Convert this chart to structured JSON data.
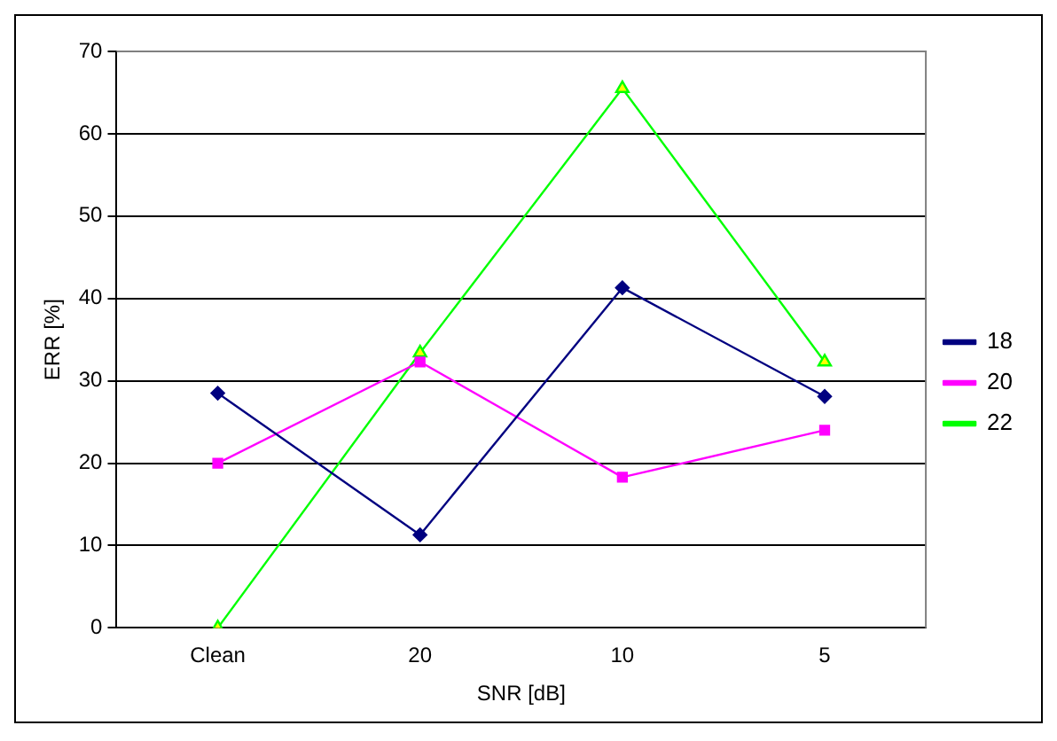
{
  "chart_data": {
    "type": "line",
    "xlabel": "SNR [dB]",
    "ylabel": "ERR [%]",
    "categories": [
      "Clean",
      "20",
      "10",
      "5"
    ],
    "series": [
      {
        "name": "18",
        "color": "#000080",
        "marker": "diamond",
        "values": [
          28.5,
          11.3,
          41.3,
          28.1
        ]
      },
      {
        "name": "20",
        "color": "#ff00ff",
        "marker": "square",
        "values": [
          20.0,
          32.3,
          18.3,
          24.0
        ]
      },
      {
        "name": "22",
        "color": "#00ff00",
        "marker": "triangle",
        "values": [
          0.0,
          33.4,
          65.5,
          32.3
        ]
      }
    ],
    "ylim": [
      0,
      70
    ],
    "yticks": [
      0,
      10,
      20,
      30,
      40,
      50,
      60,
      70
    ],
    "grid": "y",
    "legend": "right",
    "line_style": "solid"
  }
}
